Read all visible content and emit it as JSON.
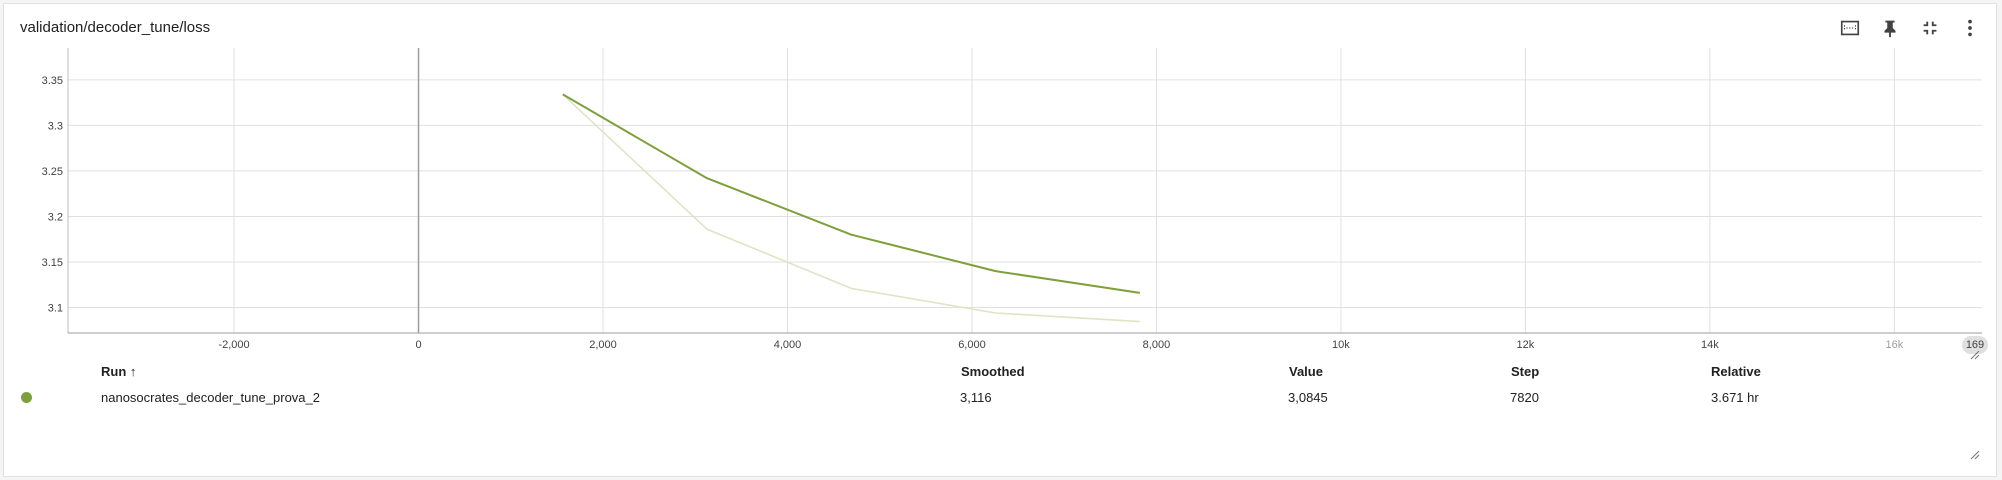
{
  "card": {
    "title": "validation/decoder_tune/loss"
  },
  "toolbar": {
    "buttons": [
      {
        "icon": "fit-domain-icon"
      },
      {
        "icon": "pin-icon"
      },
      {
        "icon": "collapse-icon"
      },
      {
        "icon": "more-vert-icon"
      }
    ]
  },
  "chart_data": {
    "type": "line",
    "title": "validation/decoder_tune/loss",
    "xlabel": "",
    "ylabel": "",
    "xlim": [
      -3800,
      16950
    ],
    "ylim": [
      3.072,
      3.385
    ],
    "grid": true,
    "x_ticks": [
      {
        "value": -2000,
        "label": "-2,000"
      },
      {
        "value": 0,
        "label": "0"
      },
      {
        "value": 2000,
        "label": "2,000"
      },
      {
        "value": 4000,
        "label": "4,000"
      },
      {
        "value": 6000,
        "label": "6,000"
      },
      {
        "value": 8000,
        "label": "8,000"
      },
      {
        "value": 10000,
        "label": "10k"
      },
      {
        "value": 12000,
        "label": "12k"
      },
      {
        "value": 14000,
        "label": "14k"
      },
      {
        "value": 16000,
        "label": "16k",
        "faded": true
      }
    ],
    "x_end_label": "169",
    "y_ticks": [
      {
        "value": 3.35,
        "label": "3.35"
      },
      {
        "value": 3.3,
        "label": "3.3"
      },
      {
        "value": 3.25,
        "label": "3.25"
      },
      {
        "value": 3.2,
        "label": "3.2"
      },
      {
        "value": 3.15,
        "label": "3.15"
      },
      {
        "value": 3.1,
        "label": "3.1"
      }
    ],
    "series": [
      {
        "name": "nanosocrates_decoder_tune_prova_2",
        "role": "raw",
        "color": "#dde5c4",
        "x": [
          1564,
          3128,
          4692,
          6256,
          7820
        ],
        "y": [
          3.334,
          3.186,
          3.121,
          3.094,
          3.0845
        ]
      },
      {
        "name": "nanosocrates_decoder_tune_prova_2",
        "role": "smoothed",
        "color": "#7ea03c",
        "x": [
          1564,
          3128,
          4692,
          6256,
          7820
        ],
        "y": [
          3.334,
          3.242,
          3.18,
          3.14,
          3.116
        ]
      }
    ]
  },
  "table": {
    "headers": {
      "run": "Run ↑",
      "smoothed": "Smoothed",
      "value": "Value",
      "step": "Step",
      "relative": "Relative"
    },
    "rows": [
      {
        "color": "#7ea03c",
        "run": "nanosocrates_decoder_tune_prova_2",
        "smoothed": "3,116",
        "value": "3,0845",
        "step": "7820",
        "relative": "3.671 hr"
      }
    ]
  }
}
